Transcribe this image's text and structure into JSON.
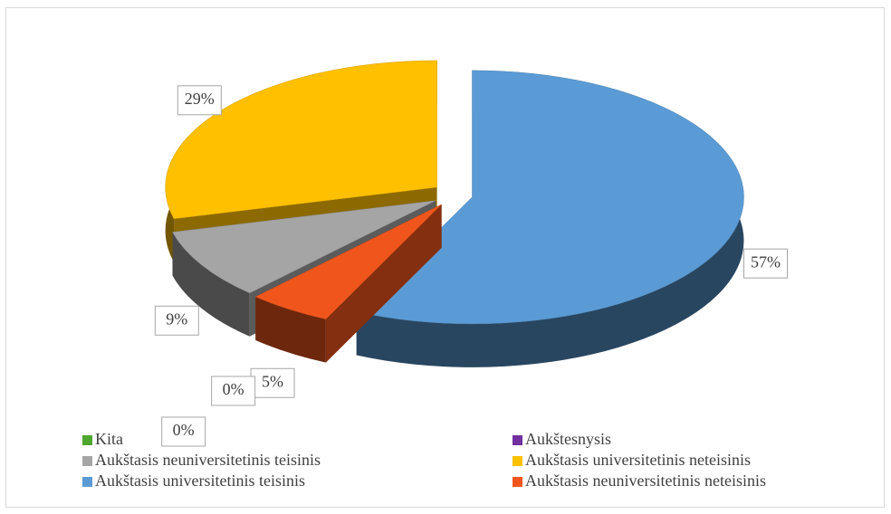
{
  "chart_data": {
    "type": "pie3d",
    "categories": [
      "Kita",
      "Aukštesnysis",
      "Aukštasis neuniversitetinis teisinis",
      "Aukštasis universitetinis neteisinis",
      "Aukštasis universitetinis teisinis",
      "Aukštasis neuniversitetinis neteisinis"
    ],
    "values": [
      0,
      0,
      9,
      29,
      57,
      5
    ],
    "value_labels": [
      "0%",
      "0%",
      "9%",
      "29%",
      "57%",
      "5%"
    ],
    "colors": [
      "#4ea72e",
      "#7030a0",
      "#a5a5a5",
      "#ffc000",
      "#5b9bd5",
      "#f0561c"
    ],
    "legend": "bottom"
  }
}
